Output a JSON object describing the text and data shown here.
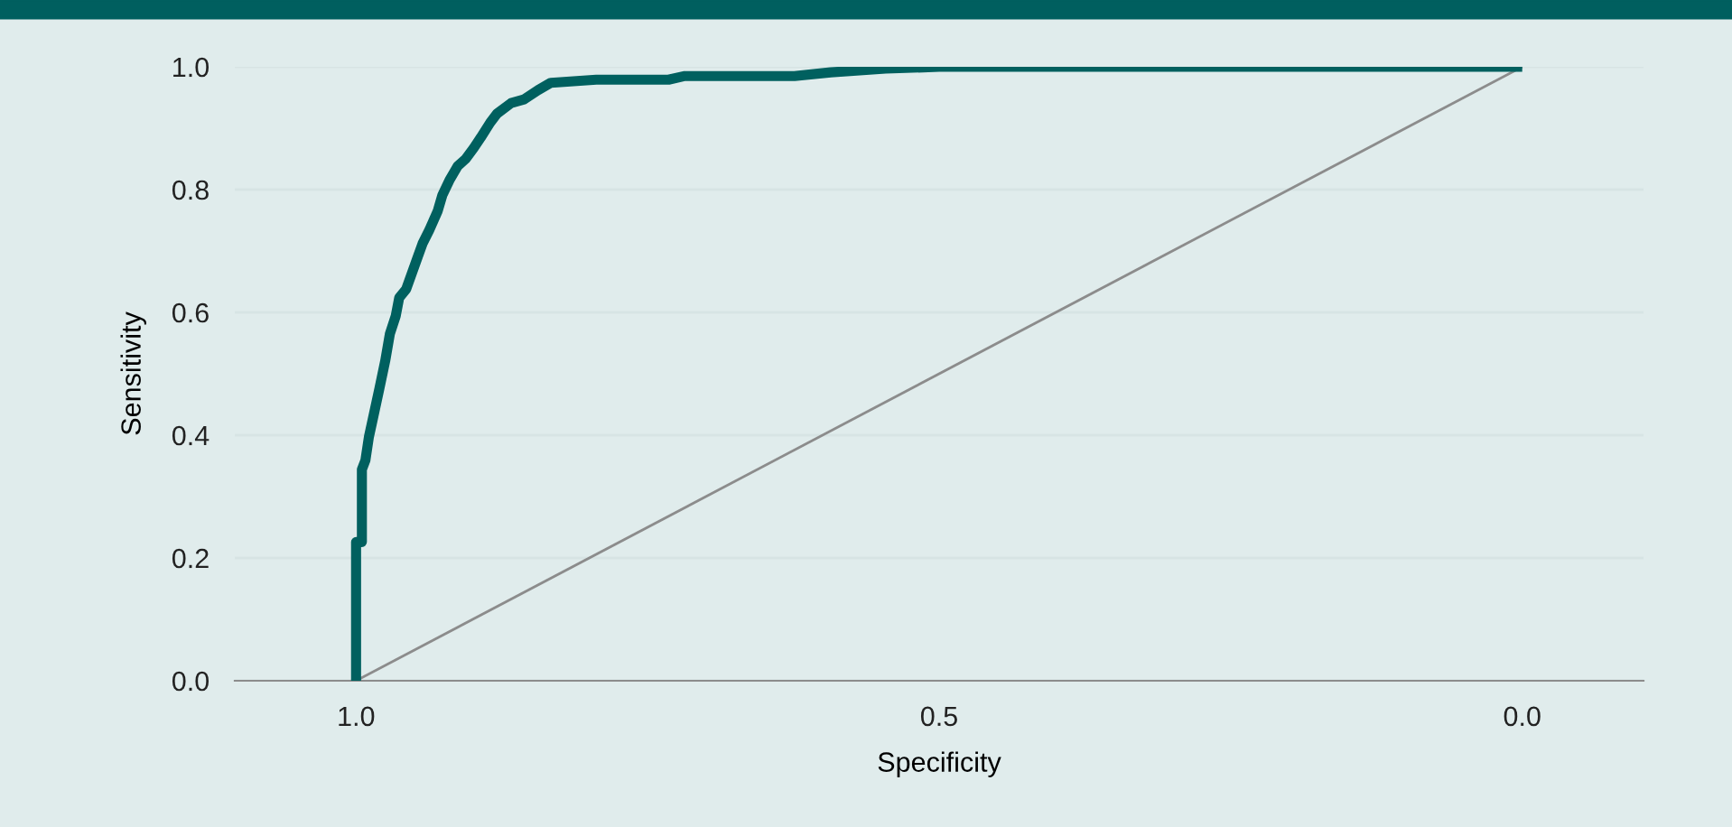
{
  "chart_data": {
    "type": "line",
    "xlabel": "Specificity",
    "ylabel": "Sensitivity",
    "xlim": [
      1.104,
      -0.104
    ],
    "xticks": [
      {
        "value": 1,
        "label": "1.0"
      },
      {
        "value": 0.5,
        "label": "0.5"
      },
      {
        "value": 0,
        "label": "0.0"
      }
    ],
    "ylim": [
      0,
      1
    ],
    "yticks": [
      {
        "value": 0,
        "label": "0.0"
      },
      {
        "value": 0.2,
        "label": "0.2"
      },
      {
        "value": 0.4,
        "label": "0.4"
      },
      {
        "value": 0.6,
        "label": "0.6"
      },
      {
        "value": 0.8,
        "label": "0.8"
      },
      {
        "value": 1,
        "label": "1.0"
      }
    ],
    "grid": "y",
    "legend": false,
    "series": [
      {
        "color": "#00605f",
        "x": [
          1.0,
          1.0,
          0.995,
          0.995,
          0.992,
          0.989,
          0.985,
          0.98,
          0.975,
          0.971,
          0.966,
          0.963,
          0.957,
          0.947,
          0.943,
          0.937,
          0.93,
          0.926,
          0.92,
          0.913,
          0.906,
          0.899,
          0.893,
          0.885,
          0.879,
          0.867,
          0.856,
          0.844,
          0.833,
          0.794,
          0.732,
          0.718,
          0.624,
          0.593,
          0.546,
          0.5,
          0.0
        ],
        "values": [
          0,
          0.226,
          0.226,
          0.344,
          0.359,
          0.397,
          0.432,
          0.476,
          0.521,
          0.565,
          0.594,
          0.624,
          0.638,
          0.691,
          0.712,
          0.735,
          0.765,
          0.791,
          0.815,
          0.838,
          0.85,
          0.868,
          0.885,
          0.909,
          0.924,
          0.941,
          0.947,
          0.962,
          0.974,
          0.979,
          0.979,
          0.985,
          0.985,
          0.991,
          0.997,
          1.0,
          1.0
        ]
      },
      {
        "color": "#8c8c8c",
        "x": [
          1.0,
          0.0
        ],
        "values": [
          0,
          1
        ]
      }
    ]
  }
}
